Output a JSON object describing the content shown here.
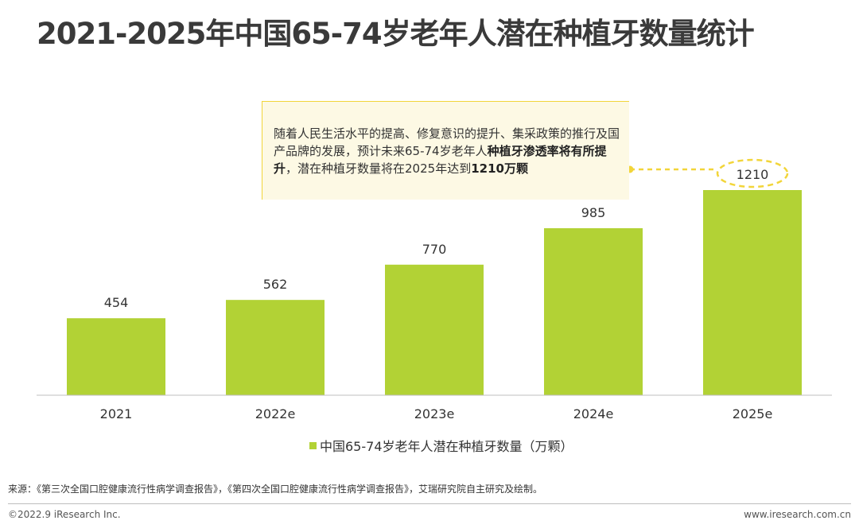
{
  "page": {
    "title": "2021-2025年中国65-74岁老年人潜在种植牙数量统计",
    "source": "来源：《第三次全国口腔健康流行性病学调查报告》，《第四次全国口腔健康流行性病学调查报告》，艾瑞研究院自主研究及绘制。",
    "copyright": "©2022.9 iResearch Inc.",
    "website": "www.iresearch.com.cn"
  },
  "callout": {
    "text_1": "随着人民生活水平的提高、修复意识的提升、集采政策的推行及国产品牌的发展，预计未来65-74岁老年人",
    "bold_1": "种植牙渗透率将有所提升",
    "text_2": "，潜在种植牙数量将在2025年达到",
    "bold_2": "1210万颗"
  },
  "colors": {
    "bar": "#b2d235",
    "accent": "#f2d53a",
    "callout_bg": "#fdf9e4",
    "axis": "#bfbfbf"
  },
  "chart_data": {
    "type": "bar",
    "categories": [
      "2021",
      "2022e",
      "2023e",
      "2024e",
      "2025e"
    ],
    "series": [
      {
        "name": "中国65-74岁老年人潜在种植牙数量（万颗）",
        "values": [
          454,
          562,
          770,
          985,
          1210
        ]
      }
    ],
    "data_labels": [
      "454",
      "562",
      "770",
      "985",
      "1210"
    ],
    "highlight_category": "2025e",
    "ylim": [
      0,
      1260
    ],
    "grid": false,
    "legend": "bottom"
  }
}
